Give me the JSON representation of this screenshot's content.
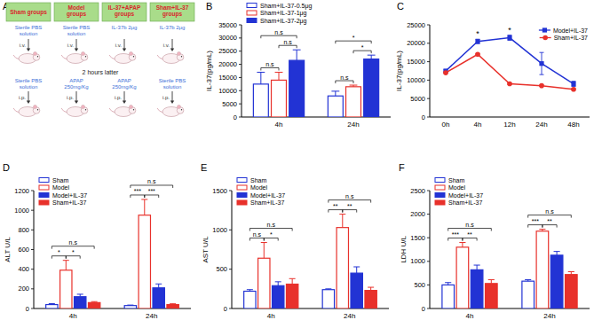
{
  "diagram": {
    "title": "A",
    "interval": "2 hours latter",
    "groups": [
      {
        "name": "Sham groups",
        "first_treatment": "Sterile PBS solution",
        "first_route": "i.v.",
        "second_treatment": "Sterile PBS solution",
        "second_route": "i.p."
      },
      {
        "name": "Model groups",
        "first_treatment": "Sterile PBS solution",
        "first_route": "i.v.",
        "second_treatment": "APAP 250mg/Kg",
        "second_route": "i.p."
      },
      {
        "name": "IL-37+APAP groups",
        "first_treatment": "IL-37b 2μg",
        "first_route": "i.v.",
        "second_treatment": "APAP 250mg/Kg",
        "second_route": "i.p."
      },
      {
        "name": "Sham+IL-37 groups",
        "first_treatment": "IL-37b 2μg",
        "first_route": "i.v.",
        "second_treatment": "Sterile PBS solution",
        "second_route": "i.p."
      }
    ]
  },
  "chart_data": [
    {
      "type": "bar",
      "title": "B",
      "y_label": "IL-37(pg/mL)",
      "categories": [
        "4h",
        "24h"
      ],
      "series": [
        {
          "name": "Sham+IL-37-0.5μg",
          "color": "#2233d4",
          "values": [
            12500,
            8000
          ],
          "errors": [
            4500,
            1800
          ]
        },
        {
          "name": "Sham+IL-37-1μg",
          "color": "#e8312b",
          "values": [
            14000,
            11500
          ],
          "errors": [
            3000,
            600
          ]
        },
        {
          "name": "Sham+IL-37-2μg",
          "color": "#2233d4",
          "values": [
            21500,
            22000
          ],
          "errors": [
            4000,
            1500
          ]
        }
      ],
      "ylim": [
        0,
        35000
      ],
      "yticks": [
        0,
        5000,
        10000,
        15000,
        20000,
        25000,
        30000,
        35000
      ],
      "legend": "upper left",
      "annotations": [
        {
          "text": "n.s",
          "category": 0,
          "from": 0,
          "to": 1
        },
        {
          "text": "n.s",
          "category": 0,
          "from": 1,
          "to": 2
        },
        {
          "text": "n.s",
          "category": 0,
          "from": 0,
          "to": 2
        },
        {
          "text": "n.s",
          "category": 1,
          "from": 0,
          "to": 1
        },
        {
          "text": "*",
          "category": 1,
          "from": 1,
          "to": 2
        },
        {
          "text": "*",
          "category": 1,
          "from": 0,
          "to": 2
        }
      ]
    },
    {
      "type": "line",
      "title": "C",
      "y_label": "IL-37(pg/mL)",
      "categories": [
        "0h",
        "4h",
        "12h",
        "24h",
        "48h"
      ],
      "series": [
        {
          "name": "Model+IL-37",
          "color": "#2233d4",
          "marker": "square",
          "values": [
            12500,
            20500,
            21500,
            14500,
            9000
          ],
          "errors": [
            300,
            600,
            700,
            3000,
            700
          ]
        },
        {
          "name": "Sham+IL-37",
          "color": "#e8312b",
          "marker": "circle",
          "values": [
            12000,
            17000,
            9000,
            8500,
            7500
          ],
          "errors": [
            200,
            200,
            200,
            200,
            200
          ]
        }
      ],
      "ylim": [
        0,
        25000
      ],
      "yticks": [
        0,
        5000,
        10000,
        15000,
        20000,
        25000
      ],
      "legend": "upper right",
      "annotations": [
        {
          "text": "*",
          "category": 1
        },
        {
          "text": "*",
          "category": 2
        }
      ]
    },
    {
      "type": "bar",
      "title": "D",
      "y_label": "ALT U/L",
      "categories": [
        "4h",
        "24h"
      ],
      "series": [
        {
          "name": "Sham",
          "color": "#2233d4",
          "values": [
            40,
            30
          ],
          "errors": [
            10,
            5
          ]
        },
        {
          "name": "Model",
          "color": "#e8312b",
          "values": [
            390,
            950
          ],
          "errors": [
            100,
            160
          ]
        },
        {
          "name": "Model+IL-37",
          "color": "#2233d4",
          "values": [
            120,
            210
          ],
          "errors": [
            25,
            40
          ]
        },
        {
          "name": "Sham+IL-37",
          "color": "#e8312b",
          "values": [
            60,
            40
          ],
          "errors": [
            10,
            8
          ]
        }
      ],
      "ylim": [
        0,
        1200
      ],
      "yticks": [
        0,
        200,
        400,
        600,
        800,
        1000,
        1200
      ],
      "legend": "upper left",
      "annotations": [
        {
          "text": "*",
          "category": 0,
          "from": 0,
          "to": 1
        },
        {
          "text": "*",
          "category": 0,
          "from": 1,
          "to": 2
        },
        {
          "text": "n.s",
          "category": 0,
          "from": 0,
          "to": 3
        },
        {
          "text": "***",
          "category": 1,
          "from": 0,
          "to": 1
        },
        {
          "text": "***",
          "category": 1,
          "from": 1,
          "to": 2
        },
        {
          "text": "n.s",
          "category": 1,
          "from": 0,
          "to": 3
        }
      ]
    },
    {
      "type": "bar",
      "title": "E",
      "y_label": "AST U/L",
      "categories": [
        "4h",
        "24h"
      ],
      "series": [
        {
          "name": "Sham",
          "color": "#2233d4",
          "values": [
            220,
            240
          ],
          "errors": [
            20,
            10
          ]
        },
        {
          "name": "Model",
          "color": "#e8312b",
          "values": [
            640,
            1030
          ],
          "errors": [
            200,
            170
          ]
        },
        {
          "name": "Model+IL-37",
          "color": "#2233d4",
          "values": [
            290,
            450
          ],
          "errors": [
            50,
            80
          ]
        },
        {
          "name": "Sham+IL-37",
          "color": "#e8312b",
          "values": [
            310,
            230
          ],
          "errors": [
            70,
            40
          ]
        }
      ],
      "ylim": [
        0,
        1500
      ],
      "yticks": [
        0,
        500,
        1000,
        1500
      ],
      "legend": "upper left",
      "annotations": [
        {
          "text": "n.s",
          "category": 0,
          "from": 0,
          "to": 1
        },
        {
          "text": "*",
          "category": 0,
          "from": 1,
          "to": 2
        },
        {
          "text": "n.s",
          "category": 0,
          "from": 0,
          "to": 3
        },
        {
          "text": "**",
          "category": 1,
          "from": 0,
          "to": 1
        },
        {
          "text": "**",
          "category": 1,
          "from": 1,
          "to": 2
        },
        {
          "text": "n.s",
          "category": 1,
          "from": 0,
          "to": 3
        }
      ]
    },
    {
      "type": "bar",
      "title": "F",
      "y_label": "LDH U/L",
      "categories": [
        "4h",
        "24h"
      ],
      "series": [
        {
          "name": "Sham",
          "color": "#2233d4",
          "values": [
            500,
            580
          ],
          "errors": [
            50,
            30
          ]
        },
        {
          "name": "Model",
          "color": "#e8312b",
          "values": [
            1300,
            1640
          ],
          "errors": [
            100,
            40
          ]
        },
        {
          "name": "Model+IL-37",
          "color": "#2233d4",
          "values": [
            820,
            1130
          ],
          "errors": [
            100,
            80
          ]
        },
        {
          "name": "Sham+IL-37",
          "color": "#e8312b",
          "values": [
            530,
            720
          ],
          "errors": [
            80,
            60
          ]
        }
      ],
      "ylim": [
        0,
        2500
      ],
      "yticks": [
        0,
        500,
        1000,
        1500,
        2000,
        2500
      ],
      "legend": "upper left",
      "annotations": [
        {
          "text": "***",
          "category": 0,
          "from": 0,
          "to": 1
        },
        {
          "text": "**",
          "category": 0,
          "from": 1,
          "to": 2
        },
        {
          "text": "n.s",
          "category": 0,
          "from": 0,
          "to": 3
        },
        {
          "text": "***",
          "category": 1,
          "from": 0,
          "to": 1
        },
        {
          "text": "**",
          "category": 1,
          "from": 1,
          "to": 2
        },
        {
          "text": "n.s",
          "category": 1,
          "from": 0,
          "to": 3
        }
      ]
    }
  ]
}
